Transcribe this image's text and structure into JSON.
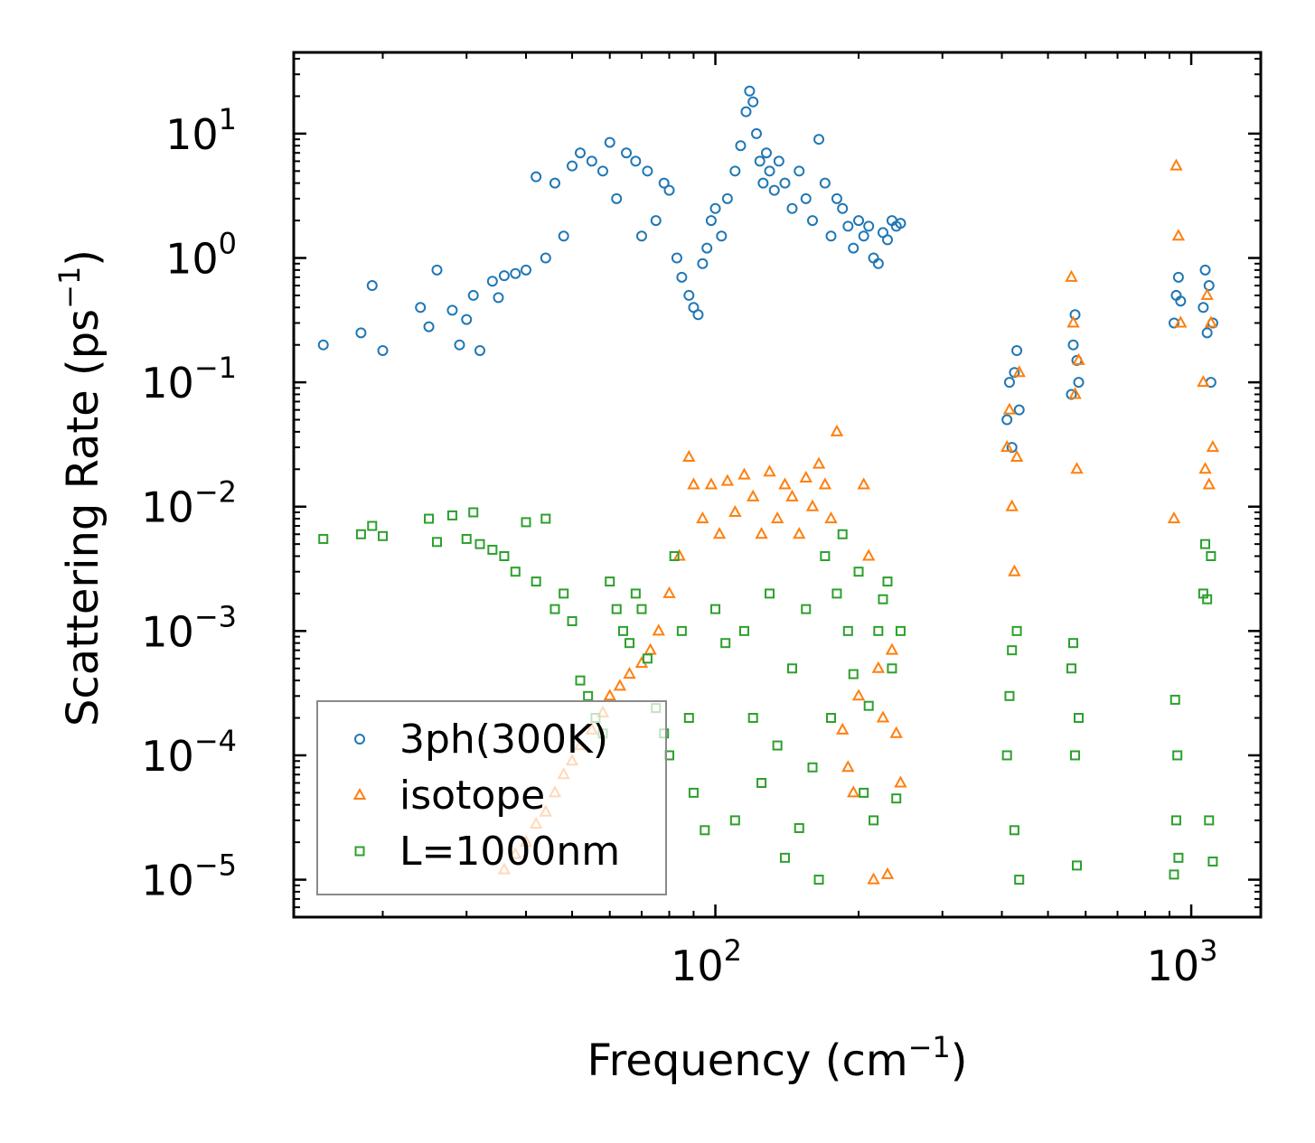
{
  "chart_data": {
    "type": "scatter",
    "xscale": "log",
    "yscale": "log",
    "xlim": [
      13,
      1400
    ],
    "ylim": [
      5e-06,
      45
    ],
    "xlabel": "Frequency (cm",
    "xlabel_sup": "−1",
    "xlabel_end": ")",
    "ylabel": "Scattering Rate (ps",
    "ylabel_sup": "−1",
    "ylabel_end": ")",
    "xticks": [
      {
        "value": 100,
        "base": "10",
        "exp": "2"
      },
      {
        "value": 1000,
        "base": "10",
        "exp": "3"
      }
    ],
    "yticks": [
      {
        "value": 1e-05,
        "base": "10",
        "exp": "−5"
      },
      {
        "value": 0.0001,
        "base": "10",
        "exp": "−4"
      },
      {
        "value": 0.001,
        "base": "10",
        "exp": "−3"
      },
      {
        "value": 0.01,
        "base": "10",
        "exp": "−2"
      },
      {
        "value": 0.1,
        "base": "10",
        "exp": "−1"
      },
      {
        "value": 1,
        "base": "10",
        "exp": "0"
      },
      {
        "value": 10,
        "base": "10",
        "exp": "1"
      }
    ],
    "legend_position": "lower-left",
    "series": [
      {
        "name": "3ph(300K)",
        "marker": "circle",
        "color": "#1f77b4",
        "x": [
          15,
          18,
          19,
          20,
          24,
          25,
          26,
          28,
          29,
          30,
          31,
          32,
          34,
          35,
          36,
          38,
          40,
          42,
          44,
          46,
          48,
          50,
          52,
          55,
          58,
          60,
          62,
          65,
          68,
          70,
          72,
          75,
          78,
          80,
          83,
          85,
          88,
          90,
          92,
          94,
          96,
          98,
          100,
          103,
          106,
          110,
          113,
          116,
          118,
          120,
          122,
          124,
          126,
          128,
          130,
          133,
          136,
          140,
          145,
          150,
          155,
          160,
          165,
          170,
          175,
          180,
          185,
          190,
          195,
          200,
          205,
          210,
          215,
          220,
          225,
          230,
          235,
          240,
          245,
          410,
          415,
          420,
          425,
          430,
          435,
          560,
          565,
          570,
          575,
          580,
          920,
          930,
          940,
          950,
          1060,
          1070,
          1080,
          1090,
          1100,
          1110
        ],
        "y": [
          0.2,
          0.25,
          0.6,
          0.18,
          0.4,
          0.28,
          0.8,
          0.38,
          0.2,
          0.32,
          0.5,
          0.18,
          0.65,
          0.48,
          0.72,
          0.75,
          0.8,
          4.5,
          1.0,
          4.0,
          1.5,
          5.5,
          7.0,
          6.0,
          5.0,
          8.5,
          3.0,
          7.0,
          6.0,
          1.5,
          5.0,
          2.0,
          4.0,
          3.5,
          1.0,
          0.7,
          0.5,
          0.4,
          0.35,
          0.9,
          1.2,
          2.0,
          2.5,
          1.5,
          3.0,
          5.0,
          8.0,
          15.0,
          22.0,
          18.0,
          10.0,
          6.0,
          4.0,
          7.0,
          5.0,
          3.5,
          6.0,
          4.0,
          2.5,
          5.0,
          3.0,
          2.0,
          9.0,
          4.0,
          1.5,
          3.0,
          2.5,
          1.8,
          1.2,
          2.0,
          1.5,
          1.8,
          1.0,
          0.9,
          1.6,
          1.4,
          2.0,
          1.8,
          1.9,
          0.05,
          0.1,
          0.03,
          0.12,
          0.18,
          0.06,
          0.08,
          0.2,
          0.35,
          0.15,
          0.1,
          0.3,
          0.5,
          0.7,
          0.45,
          0.4,
          0.8,
          0.25,
          0.6,
          0.1,
          0.3
        ]
      },
      {
        "name": "isotope",
        "marker": "triangle",
        "color": "#ff7f0e",
        "x": [
          36,
          38,
          40,
          42,
          44,
          46,
          48,
          50,
          52,
          55,
          58,
          60,
          63,
          66,
          70,
          73,
          76,
          80,
          84,
          88,
          90,
          94,
          98,
          102,
          106,
          110,
          115,
          120,
          125,
          130,
          135,
          140,
          145,
          150,
          155,
          160,
          165,
          170,
          175,
          180,
          185,
          190,
          195,
          200,
          205,
          210,
          215,
          220,
          225,
          230,
          235,
          240,
          245,
          410,
          415,
          420,
          425,
          430,
          435,
          560,
          565,
          570,
          575,
          580,
          920,
          930,
          940,
          950,
          1060,
          1070,
          1080,
          1090,
          1100,
          1110
        ],
        "y": [
          1.2e-05,
          1.6e-05,
          2e-05,
          2.8e-05,
          3.5e-05,
          5e-05,
          7e-05,
          9e-05,
          0.00012,
          0.00016,
          0.00022,
          0.0003,
          0.00036,
          0.00045,
          0.00055,
          0.0007,
          0.001,
          0.002,
          0.004,
          0.025,
          0.015,
          0.008,
          0.015,
          0.006,
          0.016,
          0.009,
          0.018,
          0.012,
          0.006,
          0.019,
          0.008,
          0.015,
          0.012,
          0.006,
          0.017,
          0.01,
          0.022,
          0.015,
          0.008,
          0.04,
          0.00016,
          8e-05,
          5e-05,
          0.0003,
          0.015,
          0.004,
          1e-05,
          0.0005,
          0.0002,
          1.1e-05,
          0.0007,
          0.00015,
          6e-05,
          0.03,
          0.06,
          0.01,
          0.003,
          0.025,
          0.12,
          0.7,
          0.3,
          0.08,
          0.02,
          0.15,
          0.008,
          5.5,
          1.5,
          0.3,
          0.1,
          0.02,
          0.5,
          0.015,
          0.3,
          0.03
        ]
      },
      {
        "name": "L=1000nm",
        "marker": "square",
        "color": "#2ca02c",
        "x": [
          15,
          18,
          19,
          20,
          25,
          26,
          28,
          30,
          31,
          32,
          34,
          36,
          38,
          40,
          42,
          44,
          46,
          48,
          50,
          52,
          54,
          56,
          58,
          60,
          62,
          64,
          66,
          68,
          70,
          72,
          75,
          78,
          80,
          82,
          85,
          88,
          90,
          95,
          100,
          105,
          110,
          115,
          120,
          125,
          130,
          135,
          140,
          145,
          150,
          155,
          160,
          165,
          170,
          175,
          180,
          185,
          190,
          195,
          200,
          205,
          210,
          215,
          220,
          225,
          230,
          235,
          240,
          245,
          410,
          415,
          420,
          425,
          430,
          435,
          560,
          565,
          570,
          575,
          580,
          920,
          925,
          930,
          935,
          940,
          1060,
          1070,
          1080,
          1090,
          1100,
          1110
        ],
        "y": [
          0.0055,
          0.006,
          0.007,
          0.0058,
          0.008,
          0.0052,
          0.0085,
          0.0055,
          0.009,
          0.005,
          0.0045,
          0.004,
          0.003,
          0.0075,
          0.0025,
          0.008,
          0.0015,
          0.002,
          0.0012,
          0.0004,
          0.0003,
          0.0002,
          0.00015,
          0.0025,
          0.0015,
          0.001,
          0.0008,
          0.002,
          0.0015,
          0.0006,
          0.00024,
          0.00015,
          0.0001,
          0.004,
          0.001,
          0.0002,
          5e-05,
          2.5e-05,
          0.0015,
          0.0008,
          3e-05,
          0.001,
          0.0002,
          6e-05,
          0.002,
          0.00012,
          1.5e-05,
          0.0005,
          2.6e-05,
          0.0015,
          8e-05,
          1e-05,
          0.004,
          0.0002,
          0.002,
          0.006,
          0.001,
          0.00045,
          0.003,
          5e-05,
          0.00025,
          3e-05,
          0.001,
          0.0018,
          0.0025,
          0.0005,
          4.5e-05,
          0.001,
          0.0001,
          0.0003,
          0.0007,
          2.5e-05,
          0.001,
          1e-05,
          0.0005,
          0.0008,
          0.0001,
          1.3e-05,
          0.0002,
          1.1e-05,
          0.00028,
          3e-05,
          0.0001,
          1.5e-05,
          0.002,
          0.005,
          0.0018,
          3e-05,
          0.004,
          1.4e-05
        ]
      }
    ]
  }
}
